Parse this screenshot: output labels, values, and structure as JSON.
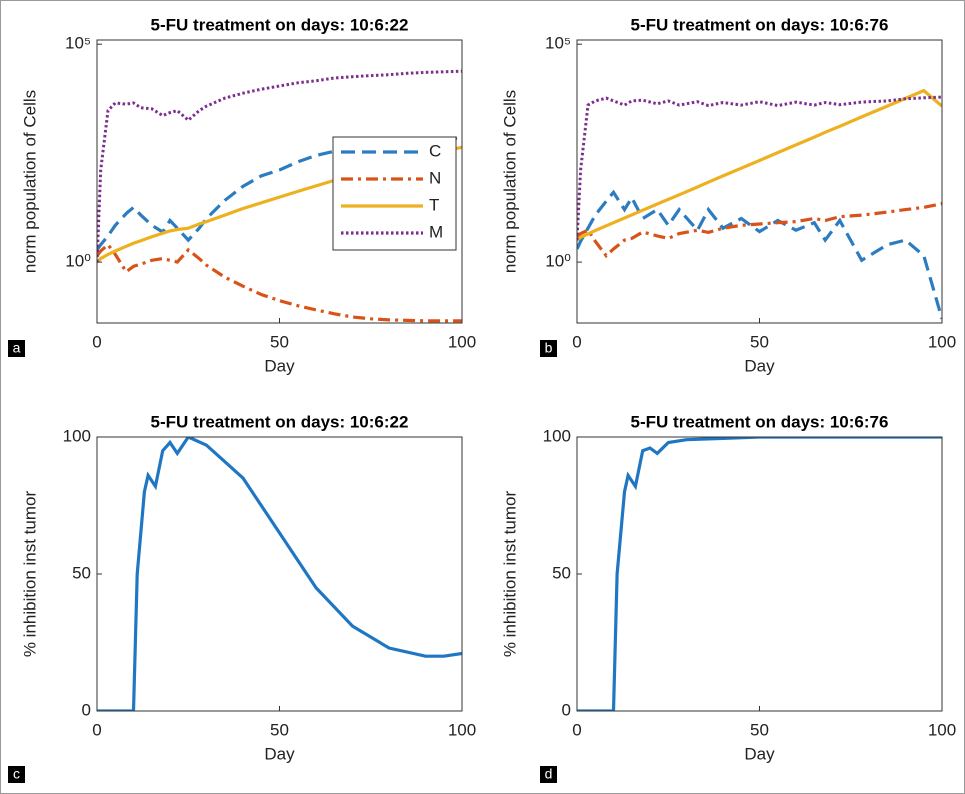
{
  "chart_data": [
    {
      "type": "line",
      "panel_label": "a",
      "title": "5-FU treatment on days: 10:6:22",
      "xlabel": "Day",
      "ylabel": "norm population of Cells",
      "yscale": "log",
      "xlim": [
        0,
        100
      ],
      "xticks": [
        0,
        50,
        100
      ],
      "ylim": [
        0.04,
        125000
      ],
      "yticks": [
        {
          "value": 1,
          "label": "10⁰"
        },
        {
          "value": 100000,
          "label": "10⁵"
        }
      ],
      "legend": "center right",
      "x": [
        0,
        1,
        3,
        5,
        8,
        10,
        12,
        15,
        18,
        20,
        22,
        25,
        28,
        30,
        35,
        40,
        45,
        50,
        55,
        60,
        65,
        70,
        75,
        80,
        85,
        90,
        95,
        100
      ],
      "series": [
        {
          "name": "C",
          "color": "#2b7cc0",
          "linestyle": "--",
          "values": [
            1.9,
            2.5,
            4,
            7,
            13,
            18,
            12,
            7,
            4.9,
            9,
            6,
            3.2,
            6,
            10,
            26,
            55,
            95,
            130,
            200,
            280,
            350,
            420,
            480,
            540,
            590,
            640,
            670,
            700
          ]
        },
        {
          "name": "N",
          "color": "#d95319",
          "linestyle": "-.",
          "values": [
            1.4,
            1.8,
            2.5,
            1.5,
            0.6,
            0.8,
            0.9,
            1.1,
            1.2,
            1.1,
            1,
            1.9,
            1.2,
            0.85,
            0.45,
            0.28,
            0.18,
            0.13,
            0.1,
            0.08,
            0.065,
            0.055,
            0.05,
            0.047,
            0.046,
            0.045,
            0.045,
            0.045
          ]
        },
        {
          "name": "T",
          "color": "#edb120",
          "linestyle": "-",
          "values": [
            1,
            1.2,
            1.5,
            1.8,
            2.3,
            2.7,
            3.1,
            3.8,
            4.6,
            5.2,
            5.6,
            6,
            7.5,
            8.5,
            12,
            17,
            23,
            31,
            42,
            56,
            75,
            100,
            130,
            170,
            220,
            280,
            350,
            430
          ]
        },
        {
          "name": "M",
          "color": "#7e2f8e",
          "linestyle": ":",
          "values": [
            1,
            130,
            3000,
            4500,
            4200,
            4500,
            3500,
            3300,
            2300,
            2700,
            3000,
            1800,
            3000,
            3800,
            5800,
            7500,
            9300,
            11000,
            13000,
            14500,
            16800,
            18000,
            19000,
            20000,
            21500,
            22500,
            23300,
            24000
          ]
        }
      ]
    },
    {
      "type": "line",
      "panel_label": "b",
      "title": "5-FU treatment on days: 10:6:76",
      "xlabel": "Day",
      "ylabel": "norm population of Cells",
      "yscale": "log",
      "xlim": [
        0,
        100
      ],
      "xticks": [
        0,
        50,
        100
      ],
      "ylim": [
        0.04,
        125000
      ],
      "yticks": [
        {
          "value": 1,
          "label": "10⁰"
        },
        {
          "value": 100000,
          "label": "10⁵"
        }
      ],
      "x": [
        0,
        1,
        3,
        5,
        8,
        10,
        13,
        15,
        18,
        22,
        25,
        28,
        33,
        36,
        40,
        45,
        50,
        55,
        60,
        65,
        68,
        72,
        78,
        85,
        90,
        95,
        100
      ],
      "series": [
        {
          "color": "#2b7cc0",
          "linestyle": "--",
          "values": [
            2,
            3,
            6,
            12,
            25,
            40,
            16,
            30,
            10,
            16,
            7,
            16,
            5.4,
            16,
            6,
            10,
            5,
            9,
            5.4,
            8,
            3.2,
            9,
            1.1,
            2.5,
            3.2,
            1.4,
            0.05
          ]
        },
        {
          "color": "#d95319",
          "linestyle": "-.",
          "values": [
            3.7,
            4.5,
            5.4,
            3,
            1.4,
            2,
            3.2,
            3.5,
            4.9,
            4,
            3.5,
            4.5,
            5.4,
            4.8,
            6,
            7,
            7.5,
            8,
            8.5,
            10,
            9,
            11,
            12,
            14,
            16,
            18,
            22
          ]
        },
        {
          "color": "#edb120",
          "linestyle": "-",
          "values": [
            3.2,
            3.7,
            4.4,
            5.3,
            6.8,
            8,
            10.3,
            12.1,
            15.5,
            21.5,
            27.5,
            35,
            53,
            68,
            95,
            143,
            215,
            325,
            490,
            740,
            950,
            1310,
            2150,
            3800,
            5700,
            8600,
            3800
          ]
        },
        {
          "color": "#7e2f8e",
          "linestyle": ":",
          "values": [
            3.2,
            130,
            4000,
            5000,
            5800,
            5000,
            4000,
            5000,
            5200,
            4300,
            5000,
            4000,
            4800,
            3900,
            4600,
            4000,
            4800,
            3900,
            4700,
            4000,
            4600,
            4100,
            4700,
            5000,
            5600,
            5900,
            6100
          ]
        }
      ]
    },
    {
      "type": "line",
      "panel_label": "c",
      "title": "5-FU treatment on days: 10:6:22",
      "xlabel": "Day",
      "ylabel": "% inhibition inst tumor",
      "yscale": "linear",
      "xlim": [
        0,
        100
      ],
      "xticks": [
        0,
        50,
        100
      ],
      "ylim": [
        0,
        100
      ],
      "yticks": [
        0,
        50,
        100
      ],
      "x": [
        0,
        10,
        11,
        13,
        14,
        16,
        18,
        20,
        22,
        25,
        30,
        40,
        50,
        60,
        70,
        80,
        90,
        95,
        100
      ],
      "series": [
        {
          "color": "#1f77c4",
          "linestyle": "-",
          "values": [
            0,
            0,
            50,
            80,
            86,
            82,
            95,
            98,
            94,
            100,
            97,
            85,
            65,
            45,
            31,
            23,
            20,
            20,
            21
          ]
        }
      ]
    },
    {
      "type": "line",
      "panel_label": "d",
      "title": "5-FU treatment on days: 10:6:76",
      "xlabel": "Day",
      "ylabel": "% inhibition inst tumor",
      "yscale": "linear",
      "xlim": [
        0,
        100
      ],
      "xticks": [
        0,
        50,
        100
      ],
      "ylim": [
        0,
        100
      ],
      "yticks": [
        0,
        50,
        100
      ],
      "x": [
        0,
        10,
        11,
        13,
        14,
        16,
        18,
        20,
        22,
        25,
        30,
        40,
        50,
        100
      ],
      "series": [
        {
          "color": "#1f77c4",
          "linestyle": "-",
          "values": [
            0,
            0,
            50,
            80,
            86,
            82,
            95,
            96,
            94,
            98,
            99,
            99.5,
            100,
            100
          ]
        }
      ]
    }
  ]
}
